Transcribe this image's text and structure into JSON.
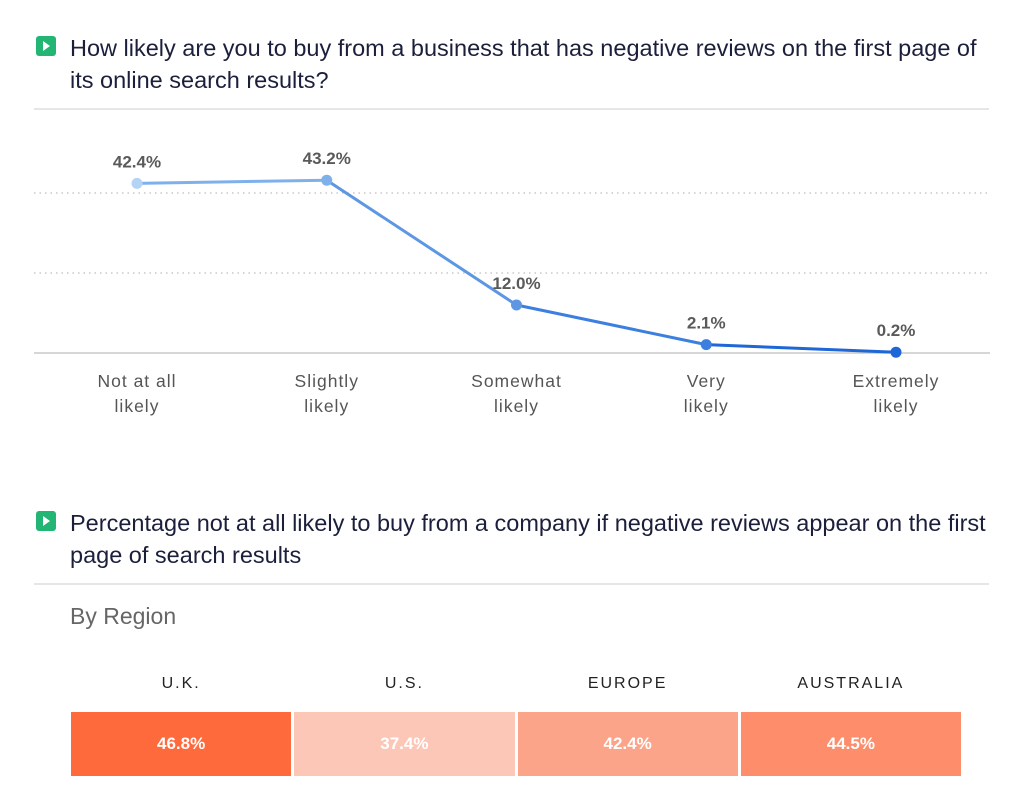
{
  "section1": {
    "title": "How likely are you to buy from a business that has negative reviews on the first page of its online search results?"
  },
  "chart_data": {
    "type": "line",
    "title": "How likely are you to buy from a business that has negative reviews on the first page of its online search results?",
    "categories": [
      "Not at all likely",
      "Slightly likely",
      "Somewhat likely",
      "Very likely",
      "Extremely likely"
    ],
    "category_lines": [
      [
        "Not at all",
        "likely"
      ],
      [
        "Slightly",
        "likely"
      ],
      [
        "Somewhat",
        "likely"
      ],
      [
        "Very",
        "likely"
      ],
      [
        "Extremely",
        "likely"
      ]
    ],
    "values": [
      42.4,
      43.2,
      12.0,
      2.1,
      0.2
    ],
    "value_labels": [
      "42.4%",
      "43.2%",
      "12.0%",
      "2.1%",
      "0.2%"
    ],
    "ylim": [
      0,
      50
    ],
    "gridlines": [
      20,
      40
    ],
    "grid": true,
    "colors": [
      "#b3d4f5",
      "#7eb1ec",
      "#5d97e4",
      "#3d7fdf",
      "#1f66d6"
    ]
  },
  "section2": {
    "title": "Percentage not at all likely to buy from a company if negative reviews appear on the first page of search results",
    "subtitle": "By Region",
    "regions": [
      {
        "label": "U.K.",
        "value": "46.8%",
        "color": "#ff6a3d"
      },
      {
        "label": "U.S.",
        "value": "37.4%",
        "color": "#fdc7b7"
      },
      {
        "label": "EUROPE",
        "value": "42.4%",
        "color": "#fca48a"
      },
      {
        "label": "AUSTRALIA",
        "value": "44.5%",
        "color": "#fd8d6b"
      }
    ]
  }
}
